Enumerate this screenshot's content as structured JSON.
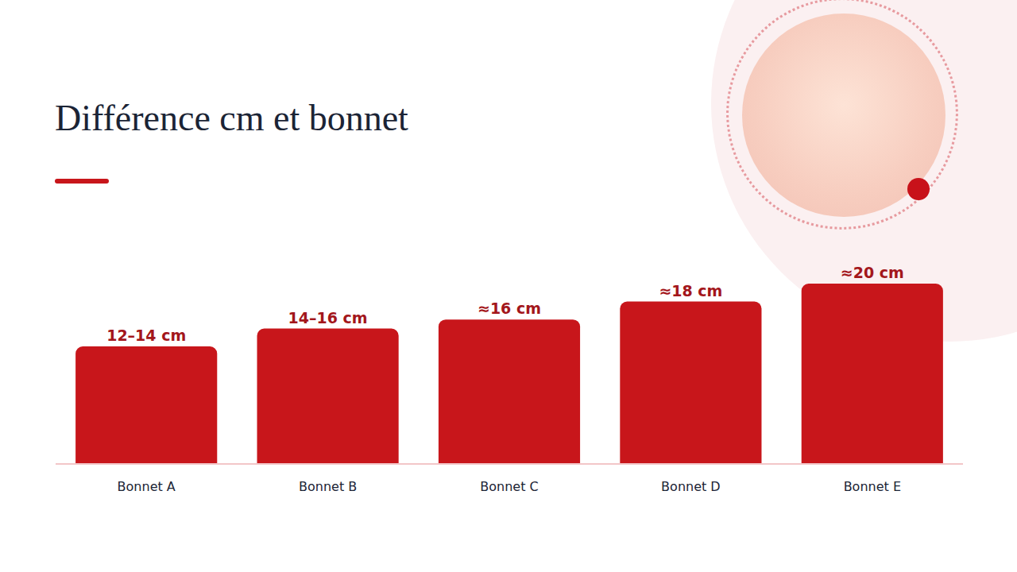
{
  "chart_data": {
    "type": "bar",
    "title": "Différence cm et bonnet",
    "categories": [
      "Bonnet A",
      "Bonnet B",
      "Bonnet C",
      "Bonnet D",
      "Bonnet E"
    ],
    "values": [
      13,
      15,
      16,
      18,
      20
    ],
    "value_labels": [
      "12–14 cm",
      "14–16 cm",
      "≈16 cm",
      "≈18 cm",
      "≈20 cm"
    ],
    "color": "#c8161b",
    "ylim": [
      0,
      20
    ],
    "yticks": [
      0,
      20
    ],
    "grid": false,
    "data_labels": true,
    "tick_labels": "x"
  }
}
